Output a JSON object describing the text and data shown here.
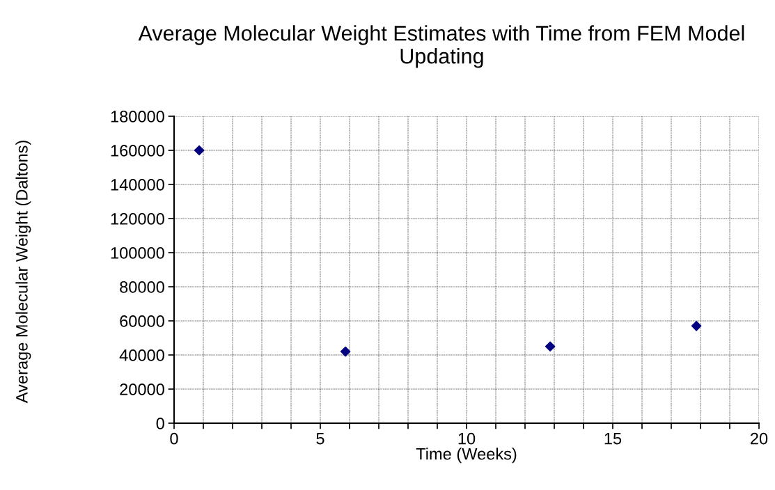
{
  "chart_data": {
    "type": "scatter",
    "title": "Average Molecular Weight Estimates with Time from FEM Model Updating",
    "xlabel": "Time (Weeks)",
    "ylabel": "Average Molecular Weight (Daltons)",
    "x": [
      0.86,
      5.86,
      12.86,
      17.86
    ],
    "values": [
      160000,
      42000,
      45000,
      57000
    ],
    "color": "#000080",
    "marker": "diamond",
    "grid": true,
    "legend": false,
    "xlim": [
      0,
      20
    ],
    "ylim": [
      0,
      180000
    ],
    "xticks": [
      0,
      {
        "value": 1,
        "label": null
      },
      {
        "value": 2,
        "label": null
      },
      {
        "value": 3,
        "label": null
      },
      {
        "value": 4,
        "label": null
      },
      5,
      {
        "value": 6,
        "label": null
      },
      {
        "value": 7,
        "label": null
      },
      {
        "value": 8,
        "label": null
      },
      {
        "value": 9,
        "label": null
      },
      10,
      {
        "value": 11,
        "label": null
      },
      {
        "value": 12,
        "label": null
      },
      {
        "value": 13,
        "label": null
      },
      {
        "value": 14,
        "label": null
      },
      15,
      {
        "value": 16,
        "label": null
      },
      {
        "value": 17,
        "label": null
      },
      {
        "value": 18,
        "label": null
      },
      {
        "value": 19,
        "label": null
      },
      20
    ],
    "yticks": [
      0,
      20000,
      40000,
      60000,
      80000,
      100000,
      120000,
      140000,
      160000,
      180000
    ]
  }
}
